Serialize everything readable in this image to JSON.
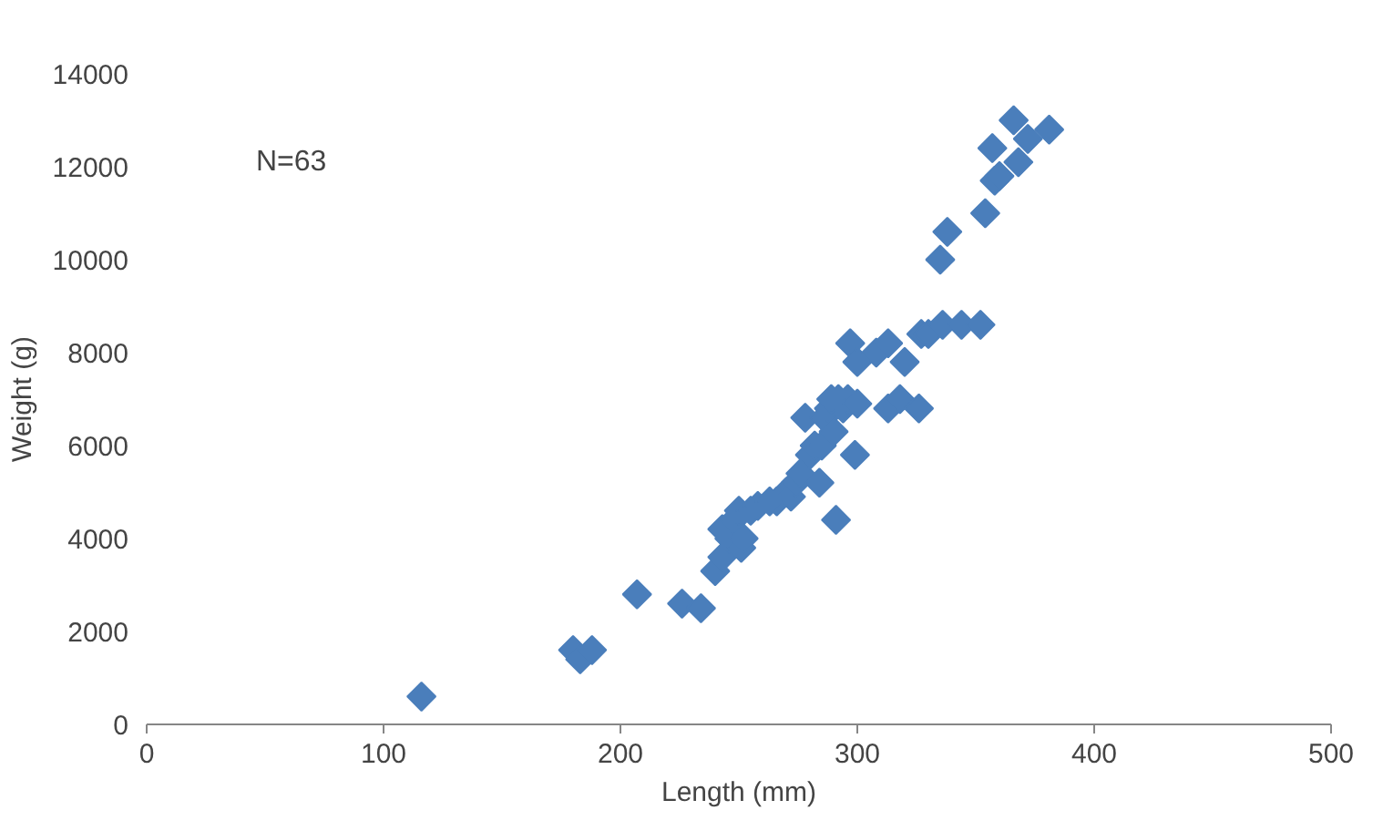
{
  "chart_data": {
    "type": "scatter",
    "xlabel": "Length (mm)",
    "ylabel": "Weight (g)",
    "annotations": [
      "N=63"
    ],
    "xlim": [
      0,
      500
    ],
    "xticks": [
      0,
      100,
      200,
      300,
      400,
      500
    ],
    "ylim": [
      0,
      14000
    ],
    "yticks": [
      0,
      2000,
      4000,
      6000,
      8000,
      10000,
      12000,
      14000
    ],
    "grid": false,
    "marker": "diamond",
    "series": [
      {
        "color": "#4a7ebb",
        "x": [
          116,
          180,
          183,
          188,
          207,
          226,
          234,
          240,
          243,
          243,
          246,
          248,
          250,
          251,
          252,
          255,
          266,
          270,
          272,
          274,
          276,
          278,
          280,
          282,
          284,
          285,
          286,
          288,
          290,
          291,
          292,
          294,
          296,
          297,
          299,
          300,
          300,
          308,
          313,
          313,
          318,
          320,
          326,
          327,
          330,
          336,
          335,
          338,
          344,
          352,
          354,
          357,
          358,
          360,
          366,
          368,
          372,
          381,
          258,
          289,
          263
        ],
        "values": [
          600,
          1600,
          1400,
          1600,
          2800,
          2600,
          2500,
          3300,
          3600,
          4200,
          4000,
          4400,
          4600,
          3800,
          4000,
          4600,
          4800,
          5000,
          4900,
          5200,
          5400,
          6600,
          5800,
          6000,
          5200,
          6000,
          6600,
          6800,
          6300,
          4400,
          7000,
          6800,
          7000,
          8200,
          5800,
          7800,
          6900,
          8000,
          8200,
          6800,
          7000,
          7800,
          6800,
          8400,
          8400,
          8600,
          10000,
          10600,
          8600,
          8600,
          11000,
          12400,
          11700,
          11800,
          13000,
          12100,
          12600,
          12800,
          4700,
          7000,
          4800
        ]
      }
    ]
  }
}
